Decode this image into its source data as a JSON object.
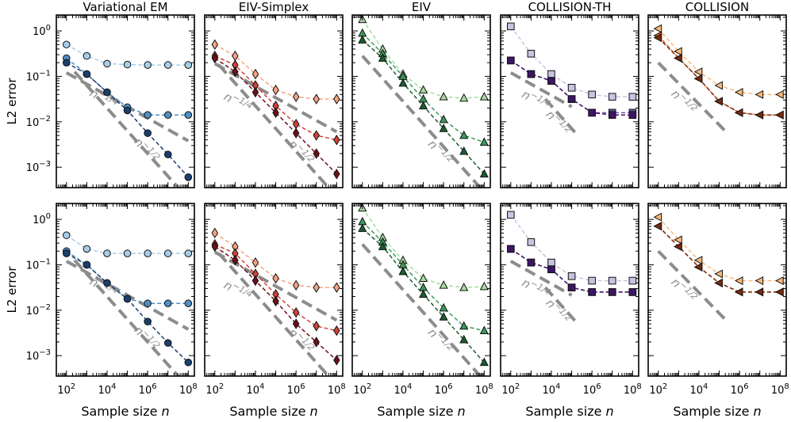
{
  "figure": {
    "ylabel": "L2 error",
    "xlabel_prefix": "Sample size ",
    "xlabel_var": "n",
    "y_ticks": [
      {
        "base": "10",
        "exp": "0",
        "v": 0
      },
      {
        "base": "10",
        "exp": "−1",
        "v": -1
      },
      {
        "base": "10",
        "exp": "−2",
        "v": -2
      },
      {
        "base": "10",
        "exp": "−3",
        "v": -3
      }
    ],
    "x_ticks": [
      {
        "base": "10",
        "exp": "2",
        "v": 2
      },
      {
        "base": "10",
        "exp": "4",
        "v": 4
      },
      {
        "base": "10",
        "exp": "6",
        "v": 6
      },
      {
        "base": "10",
        "exp": "8",
        "v": 8
      }
    ]
  },
  "chart_data": [
    {
      "row": 0,
      "col": 0,
      "type": "line",
      "title": "Variational EM",
      "xscale": "log",
      "yscale": "log",
      "xlim": [
        1.5,
        8.3
      ],
      "ylim": [
        -3.45,
        0.35
      ],
      "guides": [
        {
          "label": "n",
          "exp": "−1/4",
          "x": [
            2,
            8
          ],
          "y": [
            -0.92,
            -2.42
          ],
          "lx": 3.1,
          "ly": -1.42
        },
        {
          "label": "n",
          "exp": "−1/2",
          "x": [
            2.4,
            8
          ],
          "y": [
            -0.9,
            -3.7
          ],
          "lx": 5.3,
          "ly": -2.45
        }
      ],
      "series": [
        {
          "color": "#a6cee8",
          "marker": "circle",
          "x": [
            2,
            3,
            4,
            5,
            6,
            7,
            8
          ],
          "y": [
            -0.3,
            -0.55,
            -0.72,
            -0.74,
            -0.75,
            -0.75,
            -0.75
          ]
        },
        {
          "color": "#4f8fc4",
          "marker": "circle",
          "x": [
            2,
            3,
            4,
            5,
            6,
            7,
            8
          ],
          "y": [
            -0.6,
            -0.95,
            -1.35,
            -1.68,
            -1.85,
            -1.85,
            -1.85
          ]
        },
        {
          "color": "#1b3f6e",
          "marker": "circle",
          "x": [
            2,
            3,
            4,
            5,
            6,
            7,
            8
          ],
          "y": [
            -0.7,
            -0.95,
            -1.35,
            -1.75,
            -2.25,
            -2.72,
            -3.22
          ]
        }
      ]
    },
    {
      "row": 0,
      "col": 1,
      "type": "line",
      "title": "EIV-Simplex",
      "xscale": "log",
      "yscale": "log",
      "xlim": [
        1.5,
        8.3
      ],
      "ylim": [
        -3.45,
        0.35
      ],
      "guides": [
        {
          "label": "n",
          "exp": "−1/4",
          "x": [
            2,
            8
          ],
          "y": [
            -0.72,
            -2.22
          ],
          "lx": 2.4,
          "ly": -1.5
        },
        {
          "label": "n",
          "exp": "−1/2",
          "x": [
            2.2,
            8
          ],
          "y": [
            -0.75,
            -3.65
          ],
          "lx": 5.6,
          "ly": -2.5
        }
      ],
      "series": [
        {
          "color": "#f4a484",
          "marker": "diamond",
          "x": [
            2,
            3,
            4,
            5,
            6,
            7,
            8
          ],
          "y": [
            -0.3,
            -0.55,
            -0.95,
            -1.3,
            -1.45,
            -1.5,
            -1.5
          ]
        },
        {
          "color": "#d2423a",
          "marker": "diamond",
          "x": [
            2,
            3,
            4,
            5,
            6,
            7,
            8
          ],
          "y": [
            -0.55,
            -0.75,
            -1.2,
            -1.65,
            -2.05,
            -2.3,
            -2.4
          ]
        },
        {
          "color": "#6e0f1a",
          "marker": "diamond",
          "x": [
            2,
            3,
            4,
            5,
            6,
            7,
            8
          ],
          "y": [
            -0.6,
            -0.9,
            -1.35,
            -1.8,
            -2.25,
            -2.7,
            -3.15
          ]
        }
      ]
    },
    {
      "row": 0,
      "col": 2,
      "type": "line",
      "title": "EIV",
      "xscale": "log",
      "yscale": "log",
      "xlim": [
        1.5,
        8.3
      ],
      "ylim": [
        -3.45,
        0.35
      ],
      "guides": [
        {
          "label": "n",
          "exp": "−1/2",
          "x": [
            2,
            8
          ],
          "y": [
            -0.55,
            -3.55
          ],
          "lx": 5.2,
          "ly": -2.5
        }
      ],
      "series": [
        {
          "color": "#a8dca0",
          "marker": "triangle",
          "x": [
            2,
            3,
            4,
            5,
            6,
            7,
            8
          ],
          "y": [
            0.25,
            -0.4,
            -0.95,
            -1.3,
            -1.45,
            -1.48,
            -1.45
          ]
        },
        {
          "color": "#3a9a5a",
          "marker": "triangle",
          "x": [
            2,
            3,
            4,
            5,
            6,
            7,
            8
          ],
          "y": [
            -0.05,
            -0.5,
            -1.0,
            -1.5,
            -1.95,
            -2.3,
            -2.45
          ]
        },
        {
          "color": "#1b5e30",
          "marker": "triangle",
          "x": [
            2,
            3,
            4,
            5,
            6,
            7,
            8
          ],
          "y": [
            -0.2,
            -0.6,
            -1.15,
            -1.65,
            -2.15,
            -2.65,
            -3.15
          ]
        }
      ]
    },
    {
      "row": 0,
      "col": 3,
      "type": "line",
      "title": "COLLISION-TH",
      "xscale": "log",
      "yscale": "log",
      "xlim": [
        1.5,
        8.3
      ],
      "ylim": [
        -3.45,
        0.35
      ],
      "guides": [
        {
          "label": "n",
          "exp": "−1/4",
          "x": [
            2,
            5
          ],
          "y": [
            -0.92,
            -1.67
          ],
          "lx": 2.5,
          "ly": -1.45
        },
        {
          "label": "n",
          "exp": "−1/2",
          "x": [
            3.7,
            5.3
          ],
          "y": [
            -1.5,
            -2.3
          ],
          "lx": 3.7,
          "ly": -1.85
        }
      ],
      "series": [
        {
          "color": "#c8c3e0",
          "marker": "square",
          "x": [
            2,
            3,
            4,
            5,
            6,
            7,
            8
          ],
          "y": [
            0.1,
            -0.5,
            -0.95,
            -1.25,
            -1.4,
            -1.45,
            -1.45
          ]
        },
        {
          "color": "#7355a8",
          "marker": "square",
          "x": [
            2,
            3,
            4,
            5,
            6,
            7,
            8
          ],
          "y": [
            -0.65,
            -0.95,
            -1.1,
            -1.5,
            -1.8,
            -1.8,
            -1.8
          ]
        },
        {
          "color": "#3d1565",
          "marker": "square",
          "x": [
            2,
            3,
            4,
            5,
            6,
            7,
            8
          ],
          "y": [
            -0.65,
            -0.95,
            -1.1,
            -1.5,
            -1.8,
            -1.85,
            -1.85
          ]
        }
      ]
    },
    {
      "row": 0,
      "col": 4,
      "type": "line",
      "title": "COLLISION",
      "xscale": "log",
      "yscale": "log",
      "xlim": [
        1.5,
        8.3
      ],
      "ylim": [
        -3.45,
        0.35
      ],
      "guides": [
        {
          "label": "n",
          "exp": "−1/2",
          "x": [
            2,
            5.4
          ],
          "y": [
            -0.7,
            -2.25
          ],
          "lx": 2.6,
          "ly": -1.4
        }
      ],
      "series": [
        {
          "color": "#fbb97a",
          "marker": "tri-left",
          "x": [
            2,
            3,
            4,
            5,
            6,
            7,
            8
          ],
          "y": [
            0.05,
            -0.45,
            -0.9,
            -1.2,
            -1.35,
            -1.4,
            -1.4
          ]
        },
        {
          "color": "#d86a24",
          "marker": "tri-left",
          "x": [
            2,
            3,
            4,
            5,
            6,
            7,
            8
          ],
          "y": [
            -0.1,
            -0.6,
            -1.05,
            -1.55,
            -1.8,
            -1.85,
            -1.85
          ]
        },
        {
          "color": "#7a2a0e",
          "marker": "tri-left",
          "x": [
            2,
            3,
            4,
            5,
            6,
            7,
            8
          ],
          "y": [
            -0.15,
            -0.6,
            -1.05,
            -1.55,
            -1.8,
            -1.85,
            -1.85
          ]
        }
      ]
    },
    {
      "row": 1,
      "col": 0,
      "type": "line",
      "title": "",
      "xscale": "log",
      "yscale": "log",
      "xlim": [
        1.5,
        8.3
      ],
      "ylim": [
        -3.45,
        0.35
      ],
      "guides": [
        {
          "label": "n",
          "exp": "−1/4",
          "x": [
            2,
            8
          ],
          "y": [
            -0.92,
            -2.42
          ],
          "lx": 3.1,
          "ly": -1.42
        },
        {
          "label": "n",
          "exp": "−1/2",
          "x": [
            2.4,
            8
          ],
          "y": [
            -0.9,
            -3.7
          ],
          "lx": 5.3,
          "ly": -2.45
        }
      ],
      "series": [
        {
          "color": "#a6cee8",
          "marker": "circle",
          "x": [
            2,
            3,
            4,
            5,
            6,
            7,
            8
          ],
          "y": [
            -0.35,
            -0.65,
            -0.75,
            -0.75,
            -0.75,
            -0.75,
            -0.75
          ]
        },
        {
          "color": "#4f8fc4",
          "marker": "circle",
          "x": [
            2,
            3,
            4,
            5,
            6,
            7,
            8
          ],
          "y": [
            -0.7,
            -1.0,
            -1.4,
            -1.75,
            -1.85,
            -1.85,
            -1.85
          ]
        },
        {
          "color": "#1b3f6e",
          "marker": "circle",
          "x": [
            2,
            3,
            4,
            5,
            6,
            7,
            8
          ],
          "y": [
            -0.75,
            -1.0,
            -1.4,
            -1.75,
            -2.25,
            -2.72,
            -3.15
          ]
        }
      ]
    },
    {
      "row": 1,
      "col": 1,
      "type": "line",
      "title": "",
      "xscale": "log",
      "yscale": "log",
      "xlim": [
        1.5,
        8.3
      ],
      "ylim": [
        -3.45,
        0.35
      ],
      "guides": [
        {
          "label": "n",
          "exp": "−1/4",
          "x": [
            2,
            8
          ],
          "y": [
            -0.72,
            -2.22
          ],
          "lx": 2.4,
          "ly": -1.5
        },
        {
          "label": "n",
          "exp": "−1/2",
          "x": [
            2.2,
            8
          ],
          "y": [
            -0.75,
            -3.65
          ],
          "lx": 5.6,
          "ly": -2.5
        }
      ],
      "series": [
        {
          "color": "#f4a484",
          "marker": "diamond",
          "x": [
            2,
            3,
            4,
            5,
            6,
            7,
            8
          ],
          "y": [
            -0.3,
            -0.6,
            -0.95,
            -1.3,
            -1.45,
            -1.5,
            -1.5
          ]
        },
        {
          "color": "#d2423a",
          "marker": "diamond",
          "x": [
            2,
            3,
            4,
            5,
            6,
            7,
            8
          ],
          "y": [
            -0.55,
            -0.75,
            -1.2,
            -1.65,
            -2.05,
            -2.35,
            -2.45
          ]
        },
        {
          "color": "#6e0f1a",
          "marker": "diamond",
          "x": [
            2,
            3,
            4,
            5,
            6,
            7,
            8
          ],
          "y": [
            -0.6,
            -0.9,
            -1.35,
            -1.8,
            -2.3,
            -2.7,
            -3.1
          ]
        }
      ]
    },
    {
      "row": 1,
      "col": 2,
      "type": "line",
      "title": "",
      "xscale": "log",
      "yscale": "log",
      "xlim": [
        1.5,
        8.3
      ],
      "ylim": [
        -3.45,
        0.35
      ],
      "guides": [
        {
          "label": "n",
          "exp": "−1/2",
          "x": [
            2,
            8
          ],
          "y": [
            -0.55,
            -3.55
          ],
          "lx": 5.2,
          "ly": -2.5
        }
      ],
      "series": [
        {
          "color": "#a8dca0",
          "marker": "triangle",
          "x": [
            2,
            3,
            4,
            5,
            6,
            7,
            8
          ],
          "y": [
            0.25,
            -0.4,
            -0.9,
            -1.3,
            -1.45,
            -1.5,
            -1.48
          ]
        },
        {
          "color": "#3a9a5a",
          "marker": "triangle",
          "x": [
            2,
            3,
            4,
            5,
            6,
            7,
            8
          ],
          "y": [
            -0.05,
            -0.5,
            -1.0,
            -1.5,
            -1.95,
            -2.35,
            -2.45
          ]
        },
        {
          "color": "#1b5e30",
          "marker": "triangle",
          "x": [
            2,
            3,
            4,
            5,
            6,
            7,
            8
          ],
          "y": [
            -0.2,
            -0.6,
            -1.15,
            -1.65,
            -2.15,
            -2.65,
            -3.15
          ]
        }
      ]
    },
    {
      "row": 1,
      "col": 3,
      "type": "line",
      "title": "",
      "xscale": "log",
      "yscale": "log",
      "xlim": [
        1.5,
        8.3
      ],
      "ylim": [
        -3.45,
        0.35
      ],
      "guides": [
        {
          "label": "n",
          "exp": "−1/4",
          "x": [
            2,
            5
          ],
          "y": [
            -0.92,
            -1.67
          ],
          "lx": 2.5,
          "ly": -1.45
        },
        {
          "label": "n",
          "exp": "−1/2",
          "x": [
            3.7,
            5.3
          ],
          "y": [
            -1.5,
            -2.3
          ],
          "lx": 3.7,
          "ly": -1.85
        }
      ],
      "series": [
        {
          "color": "#c8c3e0",
          "marker": "square",
          "x": [
            2,
            3,
            4,
            5,
            6,
            7,
            8
          ],
          "y": [
            0.1,
            -0.5,
            -0.95,
            -1.25,
            -1.35,
            -1.35,
            -1.35
          ]
        },
        {
          "color": "#7355a8",
          "marker": "square",
          "x": [
            2,
            3,
            4,
            5,
            6,
            7,
            8
          ],
          "y": [
            -0.65,
            -0.95,
            -1.1,
            -1.5,
            -1.6,
            -1.6,
            -1.6
          ]
        },
        {
          "color": "#3d1565",
          "marker": "square",
          "x": [
            2,
            3,
            4,
            5,
            6,
            7,
            8
          ],
          "y": [
            -0.65,
            -0.95,
            -1.1,
            -1.5,
            -1.6,
            -1.6,
            -1.6
          ]
        }
      ]
    },
    {
      "row": 1,
      "col": 4,
      "type": "line",
      "title": "",
      "xscale": "log",
      "yscale": "log",
      "xlim": [
        1.5,
        8.3
      ],
      "ylim": [
        -3.45,
        0.35
      ],
      "guides": [
        {
          "label": "n",
          "exp": "−1/2",
          "x": [
            2,
            5.4
          ],
          "y": [
            -0.7,
            -2.25
          ],
          "lx": 2.6,
          "ly": -1.4
        }
      ],
      "series": [
        {
          "color": "#fbb97a",
          "marker": "tri-left",
          "x": [
            2,
            3,
            4,
            5,
            6,
            7,
            8
          ],
          "y": [
            0.05,
            -0.45,
            -0.9,
            -1.2,
            -1.35,
            -1.35,
            -1.35
          ]
        },
        {
          "color": "#d86a24",
          "marker": "tri-left",
          "x": [
            2,
            3,
            4,
            5,
            6,
            7,
            8
          ],
          "y": [
            -0.15,
            -0.6,
            -1.05,
            -1.4,
            -1.6,
            -1.6,
            -1.6
          ]
        },
        {
          "color": "#7a2a0e",
          "marker": "tri-left",
          "x": [
            2,
            3,
            4,
            5,
            6,
            7,
            8
          ],
          "y": [
            -0.15,
            -0.6,
            -1.05,
            -1.4,
            -1.6,
            -1.6,
            -1.6
          ]
        }
      ]
    }
  ]
}
